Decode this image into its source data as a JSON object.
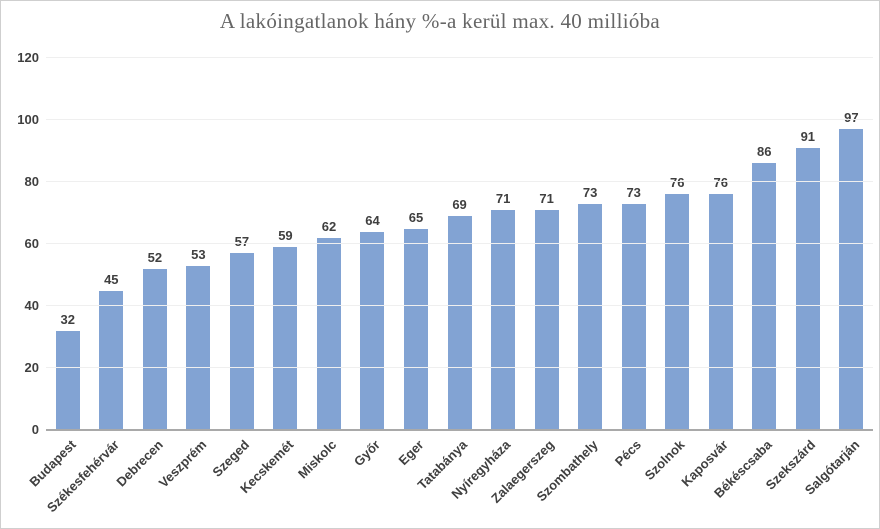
{
  "chart_data": {
    "type": "bar",
    "title": "A lakóingatlanok hány %-a kerül max. 40 millióba",
    "categories": [
      "Budapest",
      "Székesfehérvár",
      "Debrecen",
      "Veszprém",
      "Szeged",
      "Kecskemét",
      "Miskolc",
      "Győr",
      "Eger",
      "Tatabánya",
      "Nyíregyháza",
      "Zalaegerszeg",
      "Szombathely",
      "Pécs",
      "Szolnok",
      "Kaposvár",
      "Békéscsaba",
      "Szekszárd",
      "Salgótarján"
    ],
    "values": [
      32,
      45,
      52,
      53,
      57,
      59,
      62,
      64,
      65,
      69,
      71,
      71,
      73,
      73,
      76,
      76,
      86,
      91,
      97
    ],
    "xlabel": "",
    "ylabel": "",
    "ylim": [
      0,
      120
    ],
    "ytick_step": 20,
    "yticks": [
      "0",
      "20",
      "40",
      "60",
      "80",
      "100",
      "120"
    ],
    "grid": true,
    "legend": false,
    "colors": {
      "bar": "#82a3d3",
      "gridline": "#efefef",
      "axis_line": "#a9a9a9",
      "title_text": "#666666",
      "label_text": "#3f3f3f",
      "frame_border": "#cfcfcf"
    }
  }
}
